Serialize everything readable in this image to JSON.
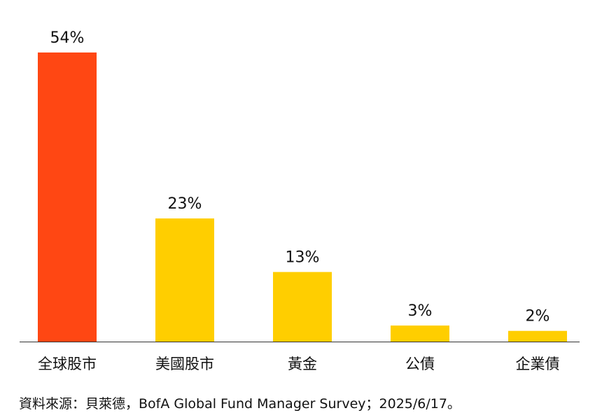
{
  "chart_data": {
    "type": "bar",
    "title": "",
    "xlabel": "",
    "ylabel": "",
    "categories": [
      "全球股市",
      "美國股市",
      "黃金",
      "公債",
      "企業債"
    ],
    "values": [
      54,
      23,
      13,
      3,
      2
    ],
    "data_labels": [
      "54%",
      "23%",
      "13%",
      "3%",
      "2%"
    ],
    "ylim": [
      0,
      54
    ],
    "grid": false,
    "colors": [
      "#FF4713",
      "#FFCE00",
      "#FFCE00",
      "#FFCE00",
      "#FFCE00"
    ]
  },
  "source": "資料來源：貝萊德，BofA Global Fund Manager Survey；2025/6/17。"
}
